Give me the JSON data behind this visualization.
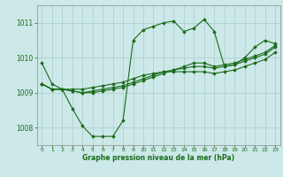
{
  "bg_color": "#cce8e8",
  "line_color": "#1a6b1a",
  "grid_color": "#aacccc",
  "xlabel": "Graphe pression niveau de la mer (hPa)",
  "ylim": [
    1007.5,
    1011.5
  ],
  "xlim": [
    -0.5,
    23.5
  ],
  "yticks": [
    1008,
    1009,
    1010,
    1011
  ],
  "xticks": [
    0,
    1,
    2,
    3,
    4,
    5,
    6,
    7,
    8,
    9,
    10,
    11,
    12,
    13,
    14,
    15,
    16,
    17,
    18,
    19,
    20,
    21,
    22,
    23
  ],
  "series": [
    [
      1009.85,
      1009.25,
      1009.1,
      1008.55,
      1008.05,
      1007.75,
      1007.75,
      1007.75,
      1008.2,
      1010.5,
      1010.8,
      1010.9,
      1011.0,
      1011.05,
      1010.75,
      1010.85,
      1011.1,
      1010.75,
      1009.75,
      1009.8,
      1010.0,
      1010.3,
      1010.5,
      1010.4
    ],
    [
      1009.25,
      1009.1,
      1009.1,
      1009.05,
      1009.0,
      1009.0,
      1009.05,
      1009.1,
      1009.15,
      1009.25,
      1009.35,
      1009.45,
      1009.55,
      1009.65,
      1009.75,
      1009.85,
      1009.85,
      1009.75,
      1009.8,
      1009.85,
      1009.95,
      1010.05,
      1010.15,
      1010.35
    ],
    [
      1009.25,
      1009.1,
      1009.1,
      1009.05,
      1009.0,
      1009.05,
      1009.1,
      1009.15,
      1009.2,
      1009.3,
      1009.4,
      1009.5,
      1009.6,
      1009.65,
      1009.7,
      1009.75,
      1009.75,
      1009.7,
      1009.75,
      1009.8,
      1009.9,
      1010.0,
      1010.1,
      1010.3
    ],
    [
      1009.25,
      1009.1,
      1009.1,
      1009.1,
      1009.1,
      1009.15,
      1009.2,
      1009.25,
      1009.3,
      1009.4,
      1009.5,
      1009.55,
      1009.6,
      1009.6,
      1009.6,
      1009.6,
      1009.6,
      1009.55,
      1009.6,
      1009.65,
      1009.75,
      1009.85,
      1009.95,
      1010.15
    ]
  ]
}
